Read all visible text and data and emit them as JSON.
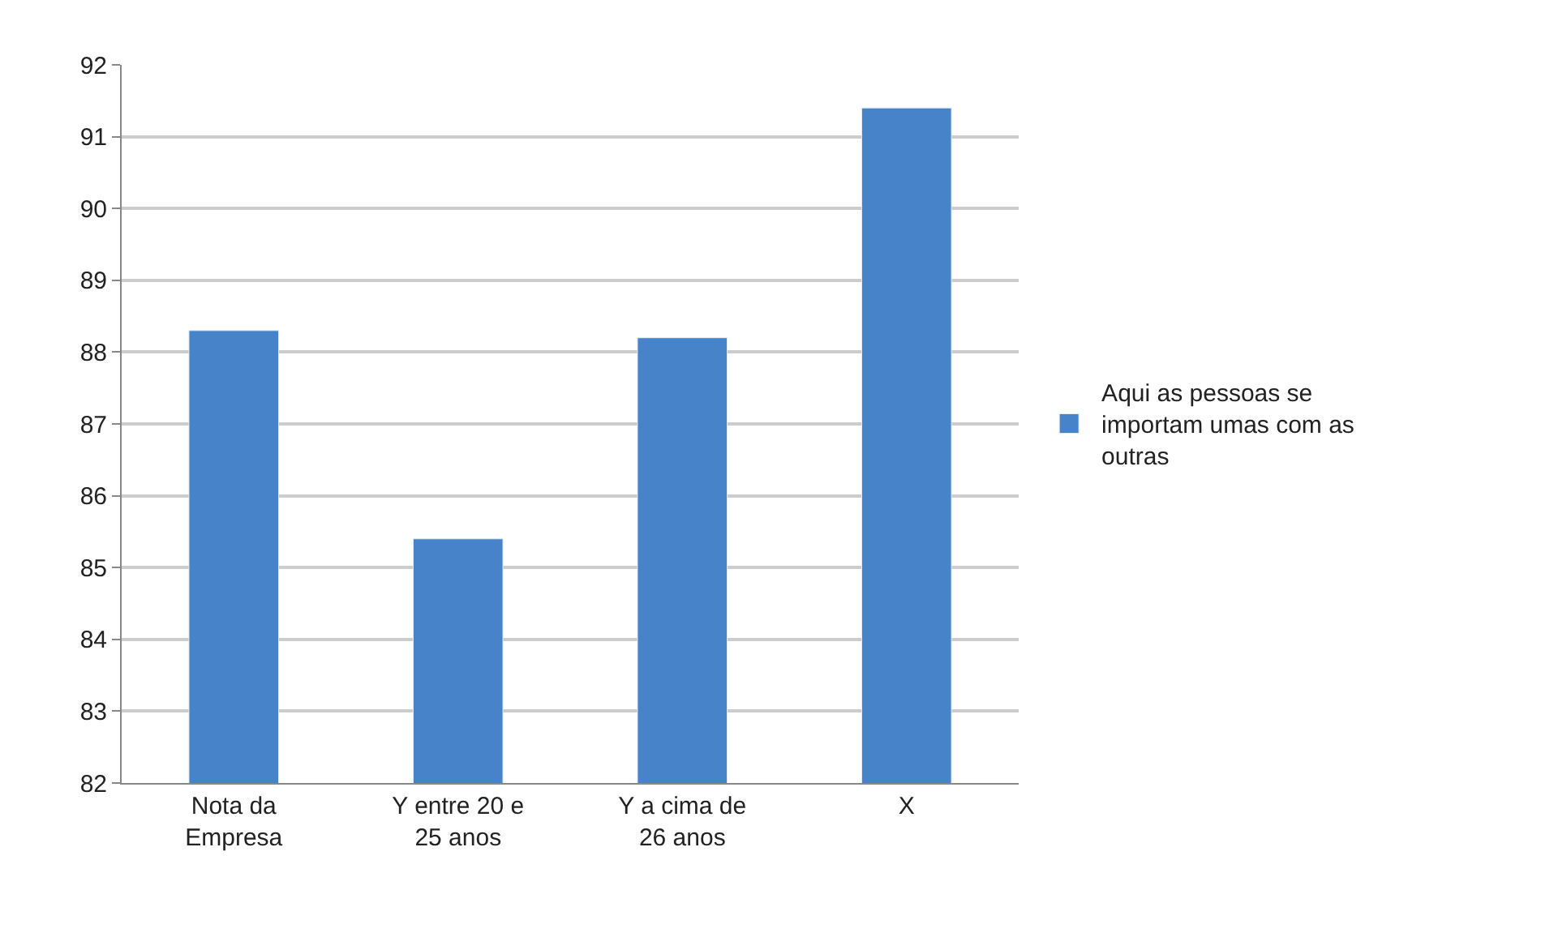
{
  "chart_data": {
    "type": "bar",
    "categories": [
      "Nota da Empresa",
      "Y entre 20 e 25 anos",
      "Y a cima de 26 anos",
      "X"
    ],
    "series": [
      {
        "name": "Aqui as pessoas se importam umas com as outras",
        "color": "#4683c8",
        "values": [
          88.3,
          85.4,
          88.2,
          91.4
        ]
      }
    ],
    "ylim": [
      82,
      92
    ],
    "yticks": [
      82,
      83,
      84,
      85,
      86,
      87,
      88,
      89,
      90,
      91,
      92
    ],
    "grid": "y",
    "legend": "right"
  }
}
